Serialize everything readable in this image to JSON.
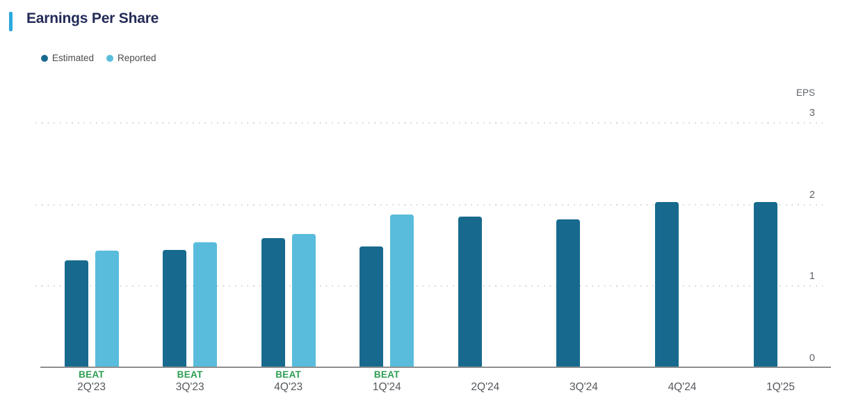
{
  "header": {
    "title": "Earnings Per Share"
  },
  "legend": {
    "items": [
      {
        "label": "Estimated",
        "color": "#176A8E"
      },
      {
        "label": "Reported",
        "color": "#59BCDC"
      }
    ]
  },
  "chart_data": {
    "type": "bar",
    "title": "Earnings Per Share",
    "ylabel": "EPS",
    "xlabel": "",
    "ylim": [
      0,
      3
    ],
    "y_ticks": [
      0,
      1,
      2,
      3
    ],
    "grid": "dotted-horizontal",
    "legend_position": "top-left",
    "categories": [
      "2Q'23",
      "3Q'23",
      "4Q'23",
      "1Q'24",
      "2Q'24",
      "3Q'24",
      "4Q'24",
      "1Q'25"
    ],
    "series": [
      {
        "name": "Estimated",
        "color": "#176A8E",
        "values": [
          1.31,
          1.44,
          1.58,
          1.48,
          1.84,
          1.81,
          2.02,
          2.02
        ]
      },
      {
        "name": "Reported",
        "color": "#59BCDC",
        "values": [
          1.43,
          1.53,
          1.63,
          1.87,
          null,
          null,
          null,
          null
        ]
      }
    ],
    "beat_label": "BEAT",
    "beat_color": "#2D9E51",
    "beats": [
      true,
      true,
      true,
      true,
      false,
      false,
      false,
      false
    ]
  },
  "colors": {
    "accent_bar": "#2BA9E0",
    "title_text": "#232B57",
    "axis_line": "#8E8E8E",
    "gridline": "#D4D4D4",
    "tick_text": "#5F6368",
    "category_text": "#55585C",
    "legend_text": "#4B4B4B"
  }
}
